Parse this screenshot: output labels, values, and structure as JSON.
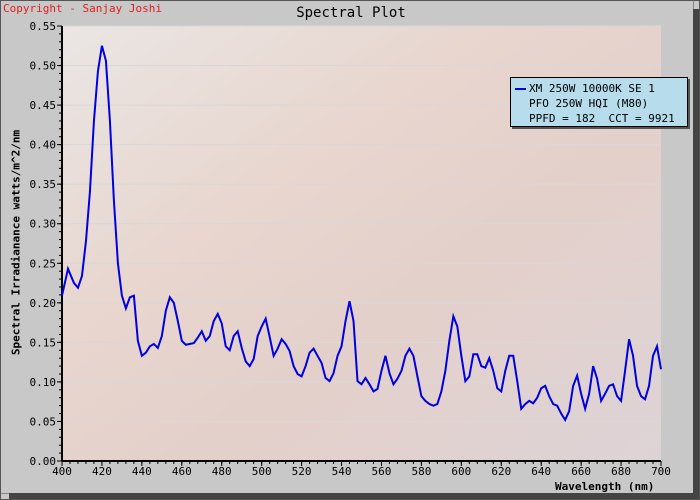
{
  "copyright": "Copyright - Sanjay Joshi",
  "chart_data": {
    "type": "line",
    "title": "Spectral Plot",
    "xlabel": "Wavelength (nm)",
    "ylabel": "Spectral Irradianance watts/m^2/nm",
    "xlim": [
      400,
      700
    ],
    "ylim": [
      0,
      0.55
    ],
    "xticks": [
      "400",
      "420",
      "440",
      "460",
      "480",
      "500",
      "520",
      "540",
      "560",
      "580",
      "600",
      "620",
      "640",
      "660",
      "680",
      "700"
    ],
    "yticks": [
      "0.00",
      "0.05",
      "0.10",
      "0.15",
      "0.20",
      "0.25",
      "0.30",
      "0.35",
      "0.40",
      "0.45",
      "0.50",
      "0.55"
    ],
    "grid": "horizontal",
    "legend_position": "top-right",
    "legend": [
      "XM 250W 10000K SE 1",
      "PFO 250W HQI (M80)",
      "PPFD = 182  CCT = 9921"
    ],
    "series": [
      {
        "name": "XM 250W 10000K SE 1",
        "color": "#0000e0",
        "x": [
          400,
          403,
          406,
          408,
          410,
          412,
          414,
          416,
          418,
          420,
          422,
          424,
          426,
          428,
          430,
          432,
          434,
          436,
          438,
          440,
          442,
          444,
          446,
          448,
          450,
          452,
          454,
          456,
          458,
          460,
          462,
          466,
          468,
          470,
          472,
          474,
          476,
          478,
          480,
          482,
          484,
          486,
          488,
          490,
          492,
          494,
          496,
          498,
          500,
          502,
          504,
          506,
          508,
          510,
          512,
          514,
          516,
          518,
          520,
          522,
          524,
          526,
          528,
          530,
          532,
          534,
          536,
          538,
          540,
          542,
          544,
          546,
          548,
          550,
          552,
          554,
          556,
          558,
          560,
          562,
          564,
          566,
          568,
          570,
          572,
          574,
          576,
          578,
          580,
          582,
          584,
          586,
          588,
          590,
          592,
          594,
          596,
          598,
          600,
          602,
          604,
          606,
          608,
          610,
          612,
          614,
          616,
          618,
          620,
          622,
          624,
          626,
          628,
          630,
          632,
          634,
          636,
          638,
          640,
          642,
          644,
          646,
          648,
          650,
          652,
          654,
          656,
          658,
          660,
          662,
          664,
          666,
          668,
          670,
          672,
          674,
          676,
          678,
          680,
          682,
          684,
          686,
          688,
          690,
          692,
          694,
          696,
          698,
          700
        ],
        "y": [
          0.209,
          0.243,
          0.225,
          0.219,
          0.234,
          0.278,
          0.341,
          0.43,
          0.493,
          0.525,
          0.506,
          0.43,
          0.329,
          0.25,
          0.209,
          0.193,
          0.207,
          0.209,
          0.152,
          0.133,
          0.137,
          0.145,
          0.148,
          0.143,
          0.158,
          0.19,
          0.207,
          0.2,
          0.177,
          0.152,
          0.147,
          0.149,
          0.156,
          0.164,
          0.152,
          0.158,
          0.177,
          0.186,
          0.174,
          0.145,
          0.14,
          0.158,
          0.164,
          0.143,
          0.126,
          0.12,
          0.129,
          0.158,
          0.17,
          0.18,
          0.157,
          0.133,
          0.142,
          0.154,
          0.148,
          0.139,
          0.12,
          0.11,
          0.107,
          0.12,
          0.137,
          0.142,
          0.133,
          0.124,
          0.105,
          0.101,
          0.111,
          0.133,
          0.145,
          0.177,
          0.202,
          0.177,
          0.101,
          0.097,
          0.105,
          0.097,
          0.088,
          0.091,
          0.114,
          0.133,
          0.111,
          0.097,
          0.104,
          0.114,
          0.133,
          0.142,
          0.133,
          0.107,
          0.082,
          0.076,
          0.072,
          0.07,
          0.072,
          0.088,
          0.114,
          0.152,
          0.183,
          0.17,
          0.133,
          0.101,
          0.107,
          0.135,
          0.135,
          0.12,
          0.118,
          0.13,
          0.114,
          0.092,
          0.088,
          0.114,
          0.133,
          0.133,
          0.101,
          0.066,
          0.072,
          0.076,
          0.073,
          0.08,
          0.092,
          0.095,
          0.082,
          0.072,
          0.07,
          0.06,
          0.052,
          0.063,
          0.095,
          0.108,
          0.085,
          0.066,
          0.085,
          0.12,
          0.104,
          0.076,
          0.085,
          0.095,
          0.097,
          0.082,
          0.076,
          0.114,
          0.154,
          0.133,
          0.095,
          0.082,
          0.078,
          0.095,
          0.133,
          0.145,
          0.116
        ]
      }
    ]
  }
}
